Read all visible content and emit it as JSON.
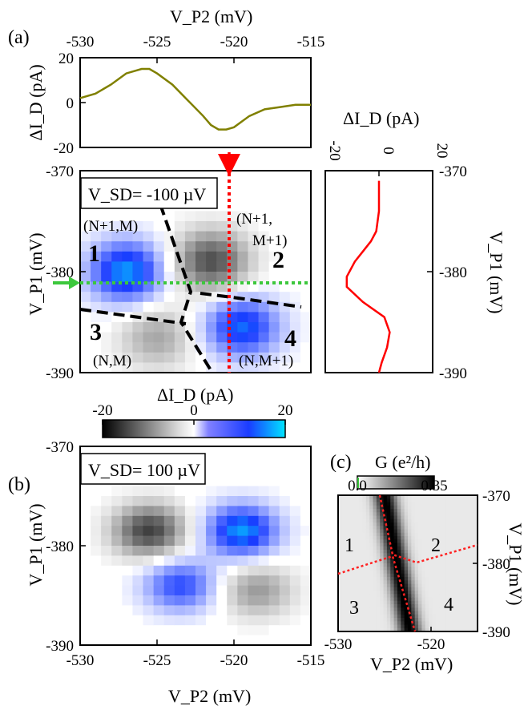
{
  "panels": {
    "a": "(a)",
    "b": "(b)",
    "c": "(c)"
  },
  "axes": {
    "vp2_top_label": "V_P2 (mV)",
    "vp2_bottom_label": "V_P2 (mV)",
    "vp1_left_label": "V_P1 (mV)",
    "vp1_right_label": "V_P1 (mV)",
    "did_label": "ΔI_D (pA)",
    "g_label": "G (e²/h)"
  },
  "annotations": {
    "vsd_a": "V_SD= -100 µV",
    "vsd_b": "V_SD= 100 µV",
    "region_nums": [
      "1",
      "2",
      "3",
      "4"
    ],
    "region_states": [
      "(N+1,M)",
      "(N+1,",
      "M+1)",
      "(N,M)",
      "(N,M+1)"
    ]
  },
  "colors": {
    "top_trace": "#808000",
    "right_trace": "#ff0000",
    "red_line": "#ff0000",
    "green_line": "#3cc83c",
    "blue_scale": "#1a1aff",
    "cyan_scale": "#00e5ff"
  },
  "chart_data": [
    {
      "type": "line",
      "name": "top trace (a)",
      "xlabel": "V_P2 (mV)",
      "ylabel": "ΔI_D (pA)",
      "xlim": [
        -530,
        -515
      ],
      "ylim": [
        -20,
        20
      ],
      "xticks": [
        "-530",
        "-525",
        "-520",
        "-515"
      ],
      "yticks": [
        "20",
        "0",
        "-20"
      ],
      "x": [
        -530,
        -529,
        -528,
        -527,
        -526,
        -525.5,
        -525,
        -524,
        -523,
        -522,
        -521.5,
        -521,
        -520.5,
        -520,
        -519,
        -518,
        -517,
        -516,
        -515
      ],
      "y": [
        2,
        4,
        8,
        13,
        15,
        15,
        13,
        8,
        1,
        -6,
        -10,
        -12,
        -12,
        -11,
        -6,
        -3,
        -2,
        -1,
        -1
      ]
    },
    {
      "type": "line",
      "name": "right trace (a)",
      "xlabel": "ΔI_D (pA)",
      "ylabel": "V_P1 (mV)",
      "xlim": [
        -20,
        20
      ],
      "ylim": [
        -390,
        -370
      ],
      "xticks": [
        "-20",
        "0",
        "20"
      ],
      "yticks": [
        "-370",
        "-380",
        "-390"
      ],
      "did": [
        0,
        0,
        -1,
        -3,
        -6,
        -9,
        -12,
        -12,
        -6,
        2,
        4,
        3,
        1,
        0
      ],
      "vp1": [
        -371,
        -374,
        -376,
        -377,
        -378,
        -379,
        -380.5,
        -381.5,
        -383,
        -384.5,
        -386,
        -387.5,
        -389,
        -390
      ]
    },
    {
      "type": "heatmap",
      "name": "map (a)",
      "xlim": [
        -530,
        -515
      ],
      "ylim": [
        -390,
        -370
      ],
      "yticks": [
        "-370",
        "-380",
        "-390"
      ],
      "colorbar": {
        "min": -20,
        "max": 20,
        "ticks": [
          "-20",
          "0",
          "20"
        ],
        "label": "ΔI_D (pA)"
      },
      "blobs": [
        {
          "region": "1",
          "cx": -527,
          "cy": -380,
          "sign": 1,
          "peak": 17
        },
        {
          "region": "2",
          "cx": -521.5,
          "cy": -379,
          "sign": -1,
          "peak": 14
        },
        {
          "region": "3",
          "cx": -525,
          "cy": -386.5,
          "sign": -1,
          "peak": 7
        },
        {
          "region": "4",
          "cx": -519.5,
          "cy": -385.5,
          "sign": 1,
          "peak": 15
        }
      ]
    },
    {
      "type": "heatmap",
      "name": "map (b)",
      "xlabel": "V_P2 (mV)",
      "ylabel": "V_P1 (mV)",
      "xlim": [
        -530,
        -515
      ],
      "ylim": [
        -390,
        -370
      ],
      "xticks": [
        "-530",
        "-525",
        "-520",
        "-515"
      ],
      "yticks": [
        "-370",
        "-380",
        "-390"
      ],
      "blobs": [
        {
          "cx": -525.5,
          "cy": -378.5,
          "sign": -1,
          "peak": 15
        },
        {
          "cx": -519.5,
          "cy": -378.5,
          "sign": 1,
          "peak": 17
        },
        {
          "cx": -523.5,
          "cy": -384,
          "sign": 1,
          "peak": 12
        },
        {
          "cx": -518.5,
          "cy": -384.5,
          "sign": -1,
          "peak": 8
        }
      ]
    },
    {
      "type": "heatmap",
      "name": "map (c)",
      "xlabel": "V_P2 (mV)",
      "ylabel": "V_P1 (mV)",
      "xlim": [
        -530,
        -515
      ],
      "ylim": [
        -390,
        -370
      ],
      "xticks": [
        "-530",
        "-520"
      ],
      "yticks": [
        "-370",
        "-380",
        "-390"
      ],
      "colorbar": {
        "min": 0.0,
        "max": 0.35,
        "ticks": [
          "0.0",
          "0.35"
        ],
        "label": "G (e²/h)"
      }
    }
  ]
}
